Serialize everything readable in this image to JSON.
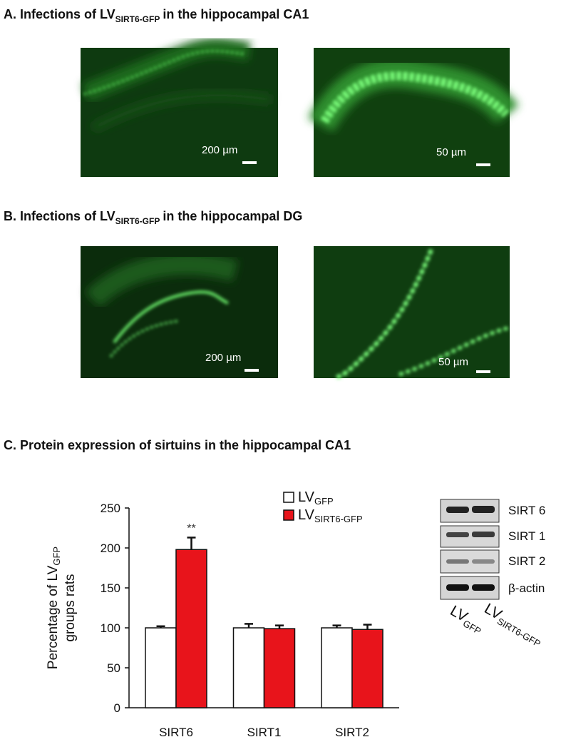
{
  "panels": [
    {
      "title": "A. Infections of LV",
      "title_sub": "SIRT6-GFP",
      "title_end": "in the hippocampal CA1",
      "scale_labels": [
        "200 µm",
        "50 µm"
      ]
    },
    {
      "title": "B. Infections of LV",
      "title_sub": "SIRT6-GFP",
      "title_end": "in the hippocampal DG",
      "scale_labels": [
        "200 µm",
        "50 µm"
      ]
    }
  ],
  "chart_data": {
    "type": "bar",
    "title": "C. Protein expression of sirtuins  in the hippocampal CA1",
    "ylabel": "Percentage of LV",
    "ylabel_sub": "GFP",
    "ylabel_end": "groups rats",
    "categories": [
      "SIRT6",
      "SIRT1",
      "SIRT2"
    ],
    "series": [
      {
        "name": "LV",
        "name_sub": "GFP",
        "color": "#ffffff",
        "values": [
          100,
          100,
          100
        ],
        "errors": [
          2,
          5,
          3
        ]
      },
      {
        "name": "LV",
        "name_sub": "SIRT6-GFP",
        "color": "#e8141b",
        "values": [
          198,
          99,
          98
        ],
        "errors": [
          15,
          4,
          6
        ]
      }
    ],
    "annotation": "**",
    "ylim": [
      0,
      250
    ],
    "yticks": [
      0,
      50,
      100,
      150,
      200,
      250
    ]
  },
  "blot": {
    "bands": [
      "SIRT 6",
      "SIRT 1",
      "SIRT 2",
      "β-actin"
    ],
    "lanes": [
      {
        "name": "LV",
        "sub": "GFP"
      },
      {
        "name": "LV",
        "sub": "SIRT6-GFP"
      }
    ]
  }
}
